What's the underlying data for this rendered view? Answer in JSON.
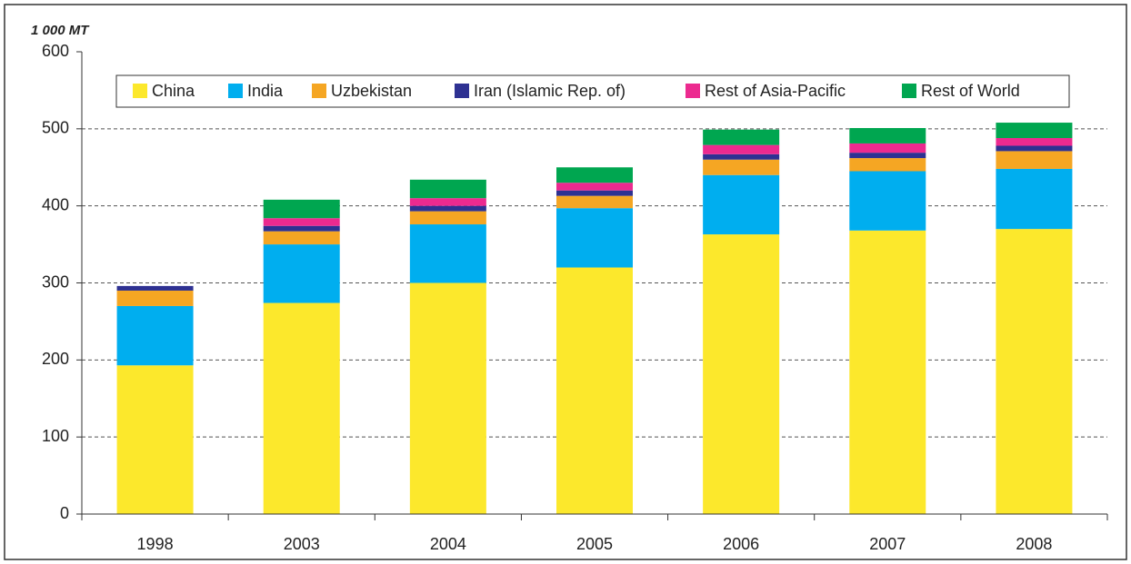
{
  "chart_data": {
    "type": "stacked_bar",
    "y_label": "1 000 MT",
    "categories": [
      "1998",
      "2003",
      "2004",
      "2005",
      "2006",
      "2007",
      "2008"
    ],
    "series": [
      {
        "name": "China",
        "color": "#fce82c",
        "values": [
          193,
          274,
          300,
          320,
          363,
          368,
          370
        ]
      },
      {
        "name": "India",
        "color": "#00aeef",
        "values": [
          77,
          76,
          76,
          77,
          77,
          77,
          78
        ]
      },
      {
        "name": "Uzbekistan",
        "color": "#f5a623",
        "values": [
          20,
          17,
          17,
          16,
          20,
          17,
          23
        ]
      },
      {
        "name": "Iran (Islamic Rep. of)",
        "color": "#2e3192",
        "values": [
          6,
          7,
          7,
          7,
          7,
          7,
          7
        ]
      },
      {
        "name": "Rest of Asia-Pacific",
        "color": "#ec2a8f",
        "values": [
          0,
          10,
          10,
          10,
          12,
          12,
          10
        ]
      },
      {
        "name": "Rest of World",
        "color": "#00a650",
        "values": [
          0,
          24,
          24,
          20,
          20,
          20,
          20
        ]
      }
    ],
    "ylim": [
      0,
      600
    ],
    "yticks": [
      0,
      100,
      200,
      300,
      400,
      500,
      600
    ],
    "grid": true,
    "legend": "top"
  }
}
